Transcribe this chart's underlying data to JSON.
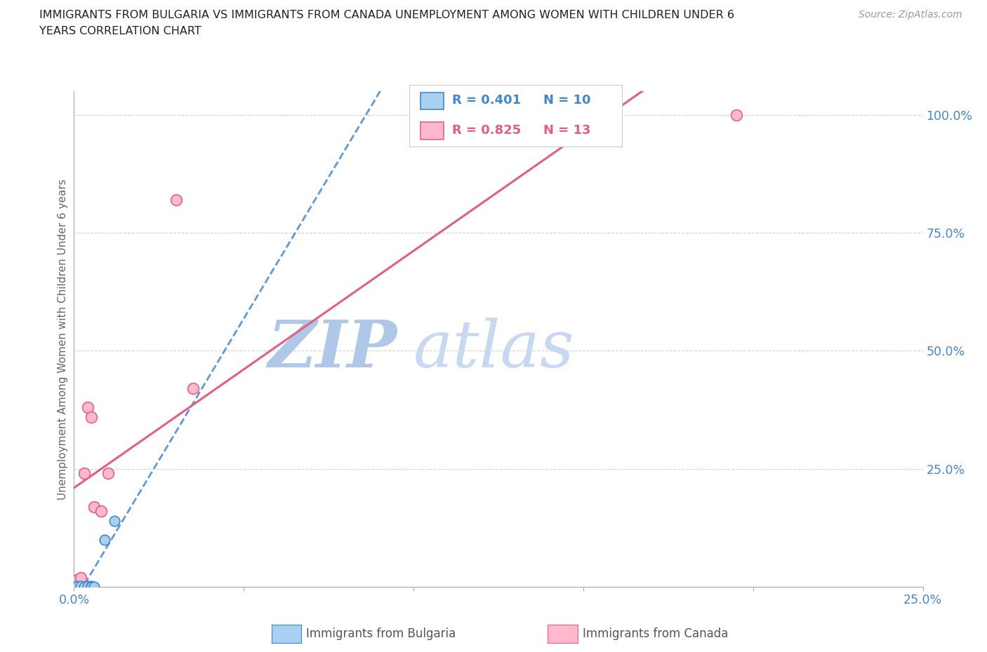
{
  "title_line1": "IMMIGRANTS FROM BULGARIA VS IMMIGRANTS FROM CANADA UNEMPLOYMENT AMONG WOMEN WITH CHILDREN UNDER 6",
  "title_line2": "YEARS CORRELATION CHART",
  "source": "Source: ZipAtlas.com",
  "ylabel": "Unemployment Among Women with Children Under 6 years",
  "xlim": [
    0.0,
    0.25
  ],
  "ylim": [
    0.0,
    1.05
  ],
  "yticks": [
    0.0,
    0.25,
    0.5,
    0.75,
    1.0
  ],
  "ytick_labels": [
    "",
    "25.0%",
    "50.0%",
    "75.0%",
    "100.0%"
  ],
  "xtick_pos": [
    0.0,
    0.05,
    0.1,
    0.15,
    0.2,
    0.25
  ],
  "xtick_labels": [
    "0.0%",
    "",
    "",
    "",
    "",
    "25.0%"
  ],
  "bg_color": "#ffffff",
  "grid_color": "#d0d0d8",
  "bulgaria_x": [
    0.0,
    0.001,
    0.002,
    0.003,
    0.004,
    0.005,
    0.005,
    0.006,
    0.009,
    0.012
  ],
  "bulgaria_y": [
    0.0,
    0.002,
    0.001,
    0.0,
    0.001,
    0.001,
    0.0,
    0.0,
    0.1,
    0.14
  ],
  "bulgaria_color": "#a8d0f0",
  "bulgaria_edge_color": "#4488cc",
  "bulgaria_R": 0.401,
  "bulgaria_N": 10,
  "canada_x": [
    0.0,
    0.001,
    0.002,
    0.003,
    0.004,
    0.005,
    0.006,
    0.008,
    0.01,
    0.03,
    0.035,
    0.12,
    0.195
  ],
  "canada_y": [
    0.005,
    0.015,
    0.02,
    0.24,
    0.38,
    0.36,
    0.17,
    0.16,
    0.24,
    0.82,
    0.42,
    1.0,
    1.0
  ],
  "canada_color": "#ffb8cc",
  "canada_edge_color": "#dd6688",
  "canada_R": 0.825,
  "canada_N": 13,
  "bulgaria_line_color": "#4488cc",
  "canada_line_color": "#e06080",
  "title_color": "#222222",
  "axis_label_color": "#666666",
  "tick_color": "#4488cc",
  "legend_R_color_bulgaria": "#4488cc",
  "legend_R_color_canada": "#e06080",
  "watermark_zip_color": "#b0c8e8",
  "watermark_atlas_color": "#c8d8f0"
}
